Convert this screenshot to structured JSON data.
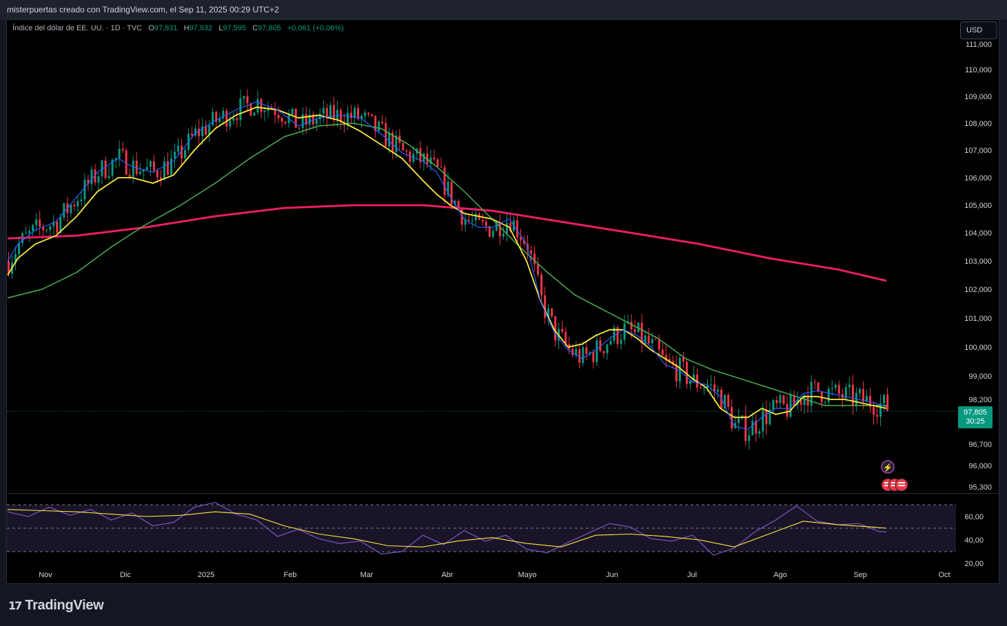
{
  "header": {
    "title": "misterpuertas creado con TradingView.com, el Sep 11, 2025 00:29 UTC+2"
  },
  "legend": {
    "symbol": "Índice del dólar de EE. UU. · 1D · TVC",
    "o_label": "O",
    "o": "97,831",
    "h_label": "H",
    "h": "97,932",
    "l_label": "L",
    "l": "97,595",
    "c_label": "C",
    "c": "97,805",
    "change": "+0,061 (+0,06%)"
  },
  "currency_button": "USD",
  "price_tag": {
    "price": "97,805",
    "countdown": "30:25"
  },
  "brand": {
    "name": "TradingView"
  },
  "colors": {
    "up": "#089981",
    "down": "#f23645",
    "ma_fast": "#2962ff",
    "ma_20": "#ffeb3b",
    "ma_50": "#4caf50",
    "ma_200": "#e91e63",
    "rsi": "#7e57c2"
  },
  "chart_data": [
    {
      "type": "candlestick",
      "symbol": "DXY",
      "interval": "1D",
      "price_axis_ticks": [
        "111,000",
        "110,000",
        "109,000",
        "108,000",
        "107,000",
        "106,000",
        "105,000",
        "104,000",
        "103,000",
        "102,000",
        "101,000",
        "100,000",
        "99,000",
        "98,200",
        "96,700",
        "96,000",
        "95,300"
      ],
      "time_axis_ticks": [
        "Nov",
        "Dic",
        "2025",
        "Feb",
        "Mar",
        "Abr",
        "Mayo",
        "Jun",
        "Jul",
        "Ago",
        "Sep",
        "Oct"
      ],
      "last_price": 97.805,
      "ma_fast": [
        [
          0,
          103.0
        ],
        [
          3,
          103.6
        ],
        [
          8,
          104.1
        ],
        [
          14,
          104.4
        ],
        [
          20,
          105.3
        ],
        [
          26,
          106.2
        ],
        [
          32,
          106.7
        ],
        [
          36,
          106.4
        ],
        [
          42,
          106.2
        ],
        [
          48,
          106.6
        ],
        [
          54,
          107.6
        ],
        [
          60,
          108.1
        ],
        [
          66,
          108.5
        ],
        [
          72,
          108.8
        ],
        [
          78,
          108.5
        ],
        [
          84,
          107.9
        ],
        [
          90,
          108.2
        ],
        [
          96,
          108.3
        ],
        [
          102,
          108.2
        ],
        [
          108,
          107.6
        ],
        [
          114,
          106.9
        ],
        [
          120,
          106.6
        ],
        [
          124,
          106.2
        ],
        [
          128,
          105.3
        ],
        [
          132,
          104.5
        ],
        [
          136,
          104.2
        ],
        [
          140,
          104.2
        ],
        [
          145,
          104.5
        ],
        [
          150,
          103.6
        ],
        [
          154,
          101.6
        ],
        [
          158,
          100.5
        ],
        [
          162,
          99.9
        ],
        [
          166,
          99.6
        ],
        [
          170,
          99.9
        ],
        [
          174,
          100.3
        ],
        [
          178,
          100.6
        ],
        [
          182,
          100.4
        ],
        [
          186,
          100.0
        ],
        [
          190,
          99.4
        ],
        [
          194,
          99.2
        ],
        [
          198,
          98.8
        ],
        [
          202,
          98.7
        ],
        [
          206,
          98.3
        ],
        [
          210,
          97.3
        ],
        [
          214,
          97.2
        ],
        [
          218,
          97.6
        ],
        [
          222,
          97.9
        ],
        [
          226,
          97.9
        ],
        [
          230,
          98.4
        ],
        [
          234,
          98.5
        ],
        [
          238,
          98.4
        ],
        [
          242,
          98.3
        ],
        [
          246,
          98.2
        ],
        [
          250,
          98.1
        ],
        [
          254,
          97.95
        ]
      ],
      "ma_20": [
        [
          0,
          102.5
        ],
        [
          3,
          103.1
        ],
        [
          8,
          103.6
        ],
        [
          14,
          103.9
        ],
        [
          20,
          104.6
        ],
        [
          26,
          105.5
        ],
        [
          32,
          106.0
        ],
        [
          36,
          106.0
        ],
        [
          42,
          105.8
        ],
        [
          48,
          106.1
        ],
        [
          54,
          107.0
        ],
        [
          60,
          107.8
        ],
        [
          66,
          108.3
        ],
        [
          72,
          108.6
        ],
        [
          78,
          108.5
        ],
        [
          84,
          108.2
        ],
        [
          90,
          108.3
        ],
        [
          96,
          108.1
        ],
        [
          102,
          107.7
        ],
        [
          108,
          107.2
        ],
        [
          114,
          106.7
        ],
        [
          120,
          105.9
        ],
        [
          124,
          105.4
        ],
        [
          128,
          105.0
        ],
        [
          132,
          104.7
        ],
        [
          136,
          104.6
        ],
        [
          140,
          104.5
        ],
        [
          145,
          104.2
        ],
        [
          150,
          103.0
        ],
        [
          154,
          101.6
        ],
        [
          158,
          100.6
        ],
        [
          162,
          100.0
        ],
        [
          166,
          100.1
        ],
        [
          170,
          100.4
        ],
        [
          174,
          100.6
        ],
        [
          178,
          100.6
        ],
        [
          182,
          100.3
        ],
        [
          186,
          99.9
        ],
        [
          190,
          99.6
        ],
        [
          194,
          99.3
        ],
        [
          198,
          98.9
        ],
        [
          202,
          98.6
        ],
        [
          206,
          97.9
        ],
        [
          210,
          97.6
        ],
        [
          214,
          97.6
        ],
        [
          218,
          97.9
        ],
        [
          222,
          97.7
        ],
        [
          226,
          97.8
        ],
        [
          230,
          98.3
        ],
        [
          234,
          98.3
        ],
        [
          238,
          98.2
        ],
        [
          242,
          98.2
        ],
        [
          246,
          98.1
        ],
        [
          250,
          98.0
        ],
        [
          254,
          97.9
        ]
      ],
      "ma_50": [
        [
          0,
          101.7
        ],
        [
          10,
          102.0
        ],
        [
          20,
          102.6
        ],
        [
          30,
          103.5
        ],
        [
          40,
          104.3
        ],
        [
          50,
          105.0
        ],
        [
          60,
          105.8
        ],
        [
          70,
          106.7
        ],
        [
          80,
          107.5
        ],
        [
          90,
          107.9
        ],
        [
          100,
          108.0
        ],
        [
          108,
          107.8
        ],
        [
          116,
          107.2
        ],
        [
          124,
          106.4
        ],
        [
          132,
          105.5
        ],
        [
          140,
          104.5
        ],
        [
          148,
          103.5
        ],
        [
          156,
          102.6
        ],
        [
          164,
          101.8
        ],
        [
          172,
          101.3
        ],
        [
          180,
          100.8
        ],
        [
          188,
          100.3
        ],
        [
          196,
          99.6
        ],
        [
          204,
          99.2
        ],
        [
          212,
          98.9
        ],
        [
          220,
          98.6
        ],
        [
          228,
          98.3
        ],
        [
          236,
          98.0
        ],
        [
          244,
          98.0
        ],
        [
          254,
          98.0
        ]
      ],
      "ma_200": [
        [
          0,
          103.8
        ],
        [
          20,
          103.9
        ],
        [
          40,
          104.2
        ],
        [
          60,
          104.6
        ],
        [
          80,
          104.9
        ],
        [
          100,
          105.0
        ],
        [
          120,
          105.0
        ],
        [
          140,
          104.8
        ],
        [
          160,
          104.4
        ],
        [
          180,
          104.0
        ],
        [
          200,
          103.6
        ],
        [
          220,
          103.1
        ],
        [
          240,
          102.7
        ],
        [
          254,
          102.3
        ]
      ]
    },
    {
      "type": "line",
      "name": "RSI",
      "y_axis_ticks": [
        "60,00",
        "40,00",
        "20,00"
      ],
      "bands": [
        70,
        50,
        30
      ],
      "rsi": [
        [
          0,
          64
        ],
        [
          6,
          60
        ],
        [
          12,
          68
        ],
        [
          18,
          61
        ],
        [
          24,
          66
        ],
        [
          30,
          57
        ],
        [
          36,
          63
        ],
        [
          42,
          52
        ],
        [
          48,
          55
        ],
        [
          54,
          68
        ],
        [
          60,
          72
        ],
        [
          66,
          62
        ],
        [
          72,
          57
        ],
        [
          78,
          43
        ],
        [
          84,
          49
        ],
        [
          90,
          41
        ],
        [
          96,
          37
        ],
        [
          102,
          39
        ],
        [
          108,
          28
        ],
        [
          114,
          30
        ],
        [
          120,
          44
        ],
        [
          126,
          36
        ],
        [
          132,
          48
        ],
        [
          138,
          39
        ],
        [
          144,
          44
        ],
        [
          150,
          32
        ],
        [
          156,
          29
        ],
        [
          162,
          38
        ],
        [
          168,
          46
        ],
        [
          174,
          54
        ],
        [
          180,
          51
        ],
        [
          186,
          41
        ],
        [
          192,
          39
        ],
        [
          198,
          44
        ],
        [
          204,
          27
        ],
        [
          210,
          33
        ],
        [
          216,
          47
        ],
        [
          222,
          57
        ],
        [
          228,
          69
        ],
        [
          234,
          56
        ],
        [
          240,
          53
        ],
        [
          246,
          54
        ],
        [
          252,
          47
        ],
        [
          254,
          47
        ]
      ],
      "rsi_ma": [
        [
          0,
          66
        ],
        [
          10,
          65
        ],
        [
          20,
          64
        ],
        [
          30,
          62
        ],
        [
          40,
          60
        ],
        [
          50,
          61
        ],
        [
          60,
          64
        ],
        [
          70,
          62
        ],
        [
          80,
          52
        ],
        [
          90,
          45
        ],
        [
          100,
          41
        ],
        [
          110,
          35
        ],
        [
          120,
          34
        ],
        [
          130,
          39
        ],
        [
          140,
          42
        ],
        [
          150,
          37
        ],
        [
          160,
          34
        ],
        [
          170,
          44
        ],
        [
          180,
          45
        ],
        [
          190,
          43
        ],
        [
          200,
          40
        ],
        [
          210,
          34
        ],
        [
          220,
          45
        ],
        [
          230,
          56
        ],
        [
          240,
          53
        ],
        [
          250,
          51
        ],
        [
          254,
          50
        ]
      ]
    }
  ]
}
